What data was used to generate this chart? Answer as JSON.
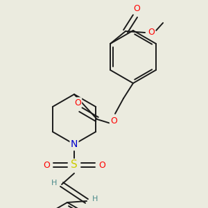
{
  "background_color": "#ebebdf",
  "bond_color": "#1a1a1a",
  "atom_colors": {
    "O": "#ff0000",
    "N": "#0000cc",
    "S": "#cccc00",
    "H": "#4a8a8a"
  },
  "figsize": [
    3.0,
    3.0
  ],
  "dpi": 100
}
